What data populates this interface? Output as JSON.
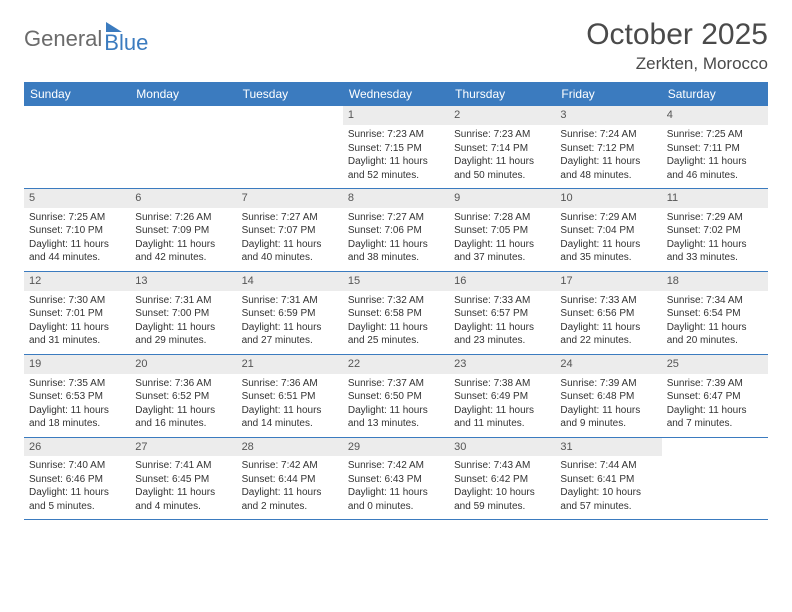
{
  "brand": {
    "part1": "General",
    "part2": "Blue"
  },
  "title": "October 2025",
  "location": "Zerkten, Morocco",
  "colors": {
    "header_bg": "#3b7bbf",
    "daynum_bg": "#ececec",
    "text": "#333333",
    "rule": "#3b7bbf"
  },
  "day_headers": [
    "Sunday",
    "Monday",
    "Tuesday",
    "Wednesday",
    "Thursday",
    "Friday",
    "Saturday"
  ],
  "weeks": [
    [
      {
        "empty": true
      },
      {
        "empty": true
      },
      {
        "empty": true
      },
      {
        "n": "1",
        "sr": "Sunrise: 7:23 AM",
        "ss": "Sunset: 7:15 PM",
        "d1": "Daylight: 11 hours",
        "d2": "and 52 minutes."
      },
      {
        "n": "2",
        "sr": "Sunrise: 7:23 AM",
        "ss": "Sunset: 7:14 PM",
        "d1": "Daylight: 11 hours",
        "d2": "and 50 minutes."
      },
      {
        "n": "3",
        "sr": "Sunrise: 7:24 AM",
        "ss": "Sunset: 7:12 PM",
        "d1": "Daylight: 11 hours",
        "d2": "and 48 minutes."
      },
      {
        "n": "4",
        "sr": "Sunrise: 7:25 AM",
        "ss": "Sunset: 7:11 PM",
        "d1": "Daylight: 11 hours",
        "d2": "and 46 minutes."
      }
    ],
    [
      {
        "n": "5",
        "sr": "Sunrise: 7:25 AM",
        "ss": "Sunset: 7:10 PM",
        "d1": "Daylight: 11 hours",
        "d2": "and 44 minutes."
      },
      {
        "n": "6",
        "sr": "Sunrise: 7:26 AM",
        "ss": "Sunset: 7:09 PM",
        "d1": "Daylight: 11 hours",
        "d2": "and 42 minutes."
      },
      {
        "n": "7",
        "sr": "Sunrise: 7:27 AM",
        "ss": "Sunset: 7:07 PM",
        "d1": "Daylight: 11 hours",
        "d2": "and 40 minutes."
      },
      {
        "n": "8",
        "sr": "Sunrise: 7:27 AM",
        "ss": "Sunset: 7:06 PM",
        "d1": "Daylight: 11 hours",
        "d2": "and 38 minutes."
      },
      {
        "n": "9",
        "sr": "Sunrise: 7:28 AM",
        "ss": "Sunset: 7:05 PM",
        "d1": "Daylight: 11 hours",
        "d2": "and 37 minutes."
      },
      {
        "n": "10",
        "sr": "Sunrise: 7:29 AM",
        "ss": "Sunset: 7:04 PM",
        "d1": "Daylight: 11 hours",
        "d2": "and 35 minutes."
      },
      {
        "n": "11",
        "sr": "Sunrise: 7:29 AM",
        "ss": "Sunset: 7:02 PM",
        "d1": "Daylight: 11 hours",
        "d2": "and 33 minutes."
      }
    ],
    [
      {
        "n": "12",
        "sr": "Sunrise: 7:30 AM",
        "ss": "Sunset: 7:01 PM",
        "d1": "Daylight: 11 hours",
        "d2": "and 31 minutes."
      },
      {
        "n": "13",
        "sr": "Sunrise: 7:31 AM",
        "ss": "Sunset: 7:00 PM",
        "d1": "Daylight: 11 hours",
        "d2": "and 29 minutes."
      },
      {
        "n": "14",
        "sr": "Sunrise: 7:31 AM",
        "ss": "Sunset: 6:59 PM",
        "d1": "Daylight: 11 hours",
        "d2": "and 27 minutes."
      },
      {
        "n": "15",
        "sr": "Sunrise: 7:32 AM",
        "ss": "Sunset: 6:58 PM",
        "d1": "Daylight: 11 hours",
        "d2": "and 25 minutes."
      },
      {
        "n": "16",
        "sr": "Sunrise: 7:33 AM",
        "ss": "Sunset: 6:57 PM",
        "d1": "Daylight: 11 hours",
        "d2": "and 23 minutes."
      },
      {
        "n": "17",
        "sr": "Sunrise: 7:33 AM",
        "ss": "Sunset: 6:56 PM",
        "d1": "Daylight: 11 hours",
        "d2": "and 22 minutes."
      },
      {
        "n": "18",
        "sr": "Sunrise: 7:34 AM",
        "ss": "Sunset: 6:54 PM",
        "d1": "Daylight: 11 hours",
        "d2": "and 20 minutes."
      }
    ],
    [
      {
        "n": "19",
        "sr": "Sunrise: 7:35 AM",
        "ss": "Sunset: 6:53 PM",
        "d1": "Daylight: 11 hours",
        "d2": "and 18 minutes."
      },
      {
        "n": "20",
        "sr": "Sunrise: 7:36 AM",
        "ss": "Sunset: 6:52 PM",
        "d1": "Daylight: 11 hours",
        "d2": "and 16 minutes."
      },
      {
        "n": "21",
        "sr": "Sunrise: 7:36 AM",
        "ss": "Sunset: 6:51 PM",
        "d1": "Daylight: 11 hours",
        "d2": "and 14 minutes."
      },
      {
        "n": "22",
        "sr": "Sunrise: 7:37 AM",
        "ss": "Sunset: 6:50 PM",
        "d1": "Daylight: 11 hours",
        "d2": "and 13 minutes."
      },
      {
        "n": "23",
        "sr": "Sunrise: 7:38 AM",
        "ss": "Sunset: 6:49 PM",
        "d1": "Daylight: 11 hours",
        "d2": "and 11 minutes."
      },
      {
        "n": "24",
        "sr": "Sunrise: 7:39 AM",
        "ss": "Sunset: 6:48 PM",
        "d1": "Daylight: 11 hours",
        "d2": "and 9 minutes."
      },
      {
        "n": "25",
        "sr": "Sunrise: 7:39 AM",
        "ss": "Sunset: 6:47 PM",
        "d1": "Daylight: 11 hours",
        "d2": "and 7 minutes."
      }
    ],
    [
      {
        "n": "26",
        "sr": "Sunrise: 7:40 AM",
        "ss": "Sunset: 6:46 PM",
        "d1": "Daylight: 11 hours",
        "d2": "and 5 minutes."
      },
      {
        "n": "27",
        "sr": "Sunrise: 7:41 AM",
        "ss": "Sunset: 6:45 PM",
        "d1": "Daylight: 11 hours",
        "d2": "and 4 minutes."
      },
      {
        "n": "28",
        "sr": "Sunrise: 7:42 AM",
        "ss": "Sunset: 6:44 PM",
        "d1": "Daylight: 11 hours",
        "d2": "and 2 minutes."
      },
      {
        "n": "29",
        "sr": "Sunrise: 7:42 AM",
        "ss": "Sunset: 6:43 PM",
        "d1": "Daylight: 11 hours",
        "d2": "and 0 minutes."
      },
      {
        "n": "30",
        "sr": "Sunrise: 7:43 AM",
        "ss": "Sunset: 6:42 PM",
        "d1": "Daylight: 10 hours",
        "d2": "and 59 minutes."
      },
      {
        "n": "31",
        "sr": "Sunrise: 7:44 AM",
        "ss": "Sunset: 6:41 PM",
        "d1": "Daylight: 10 hours",
        "d2": "and 57 minutes."
      },
      {
        "empty": true
      }
    ]
  ]
}
